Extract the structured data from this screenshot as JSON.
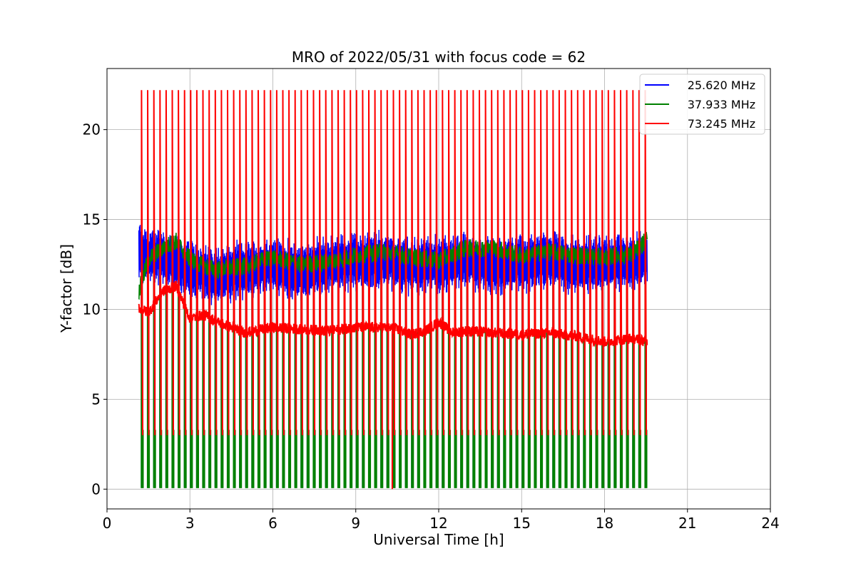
{
  "chart_data": {
    "type": "line",
    "title": "MRO of 2022/05/31 with focus code = 62",
    "xlabel": "Universal Time [h]",
    "ylabel": "Y-factor [dB]",
    "xlim": [
      0,
      24
    ],
    "ylim": [
      -1.1,
      23.4
    ],
    "xticks": [
      0,
      3,
      6,
      9,
      12,
      15,
      18,
      21,
      24
    ],
    "yticks": [
      0,
      5,
      10,
      15,
      20
    ],
    "grid": true,
    "legend_position": "top-right",
    "x_range_observed": [
      1.15,
      19.55
    ],
    "series": [
      {
        "name": "25.620 MHz",
        "color": "#0000ff",
        "baseline_x": [
          1.15,
          1.5,
          2.0,
          2.5,
          3.0,
          3.5,
          4.0,
          5.0,
          6.0,
          7.0,
          8.0,
          9.0,
          10.0,
          11.0,
          12.0,
          13.0,
          14.0,
          15.0,
          16.0,
          17.0,
          18.0,
          19.0,
          19.55
        ],
        "baseline_y": [
          13.3,
          12.9,
          13.0,
          12.6,
          12.2,
          12.0,
          11.9,
          12.2,
          12.4,
          12.1,
          12.5,
          12.6,
          12.8,
          12.4,
          12.5,
          12.7,
          12.4,
          12.6,
          12.8,
          12.4,
          12.6,
          12.6,
          12.8
        ],
        "fluctuation_amplitude_db": 1.8,
        "periodic_dip_min_db": 0.1
      },
      {
        "name": "37.933 MHz",
        "color": "#008000",
        "baseline_x": [
          1.15,
          1.5,
          2.0,
          2.5,
          3.0,
          3.5,
          4.0,
          5.0,
          6.0,
          7.0,
          8.0,
          9.0,
          10.0,
          11.0,
          12.0,
          13.0,
          14.0,
          15.0,
          16.0,
          17.0,
          18.0,
          19.0,
          19.55
        ],
        "baseline_y": [
          11.0,
          12.8,
          13.4,
          13.8,
          12.8,
          12.4,
          12.2,
          12.4,
          12.9,
          12.5,
          12.6,
          13.0,
          13.2,
          12.9,
          12.7,
          13.4,
          13.4,
          13.0,
          13.2,
          13.0,
          12.9,
          13.1,
          13.9
        ],
        "fluctuation_amplitude_db": 0.5,
        "periodic_dip_min_db": 0.1,
        "periodic_dip_shoulder_db": 3.3
      },
      {
        "name": "73.245 MHz",
        "color": "#ff0000",
        "baseline_x": [
          1.15,
          1.5,
          2.0,
          2.5,
          3.0,
          3.5,
          4.0,
          4.5,
          5.0,
          6.0,
          7.0,
          8.0,
          9.0,
          10.0,
          10.5,
          11.0,
          11.5,
          12.0,
          12.5,
          13.0,
          14.0,
          15.0,
          16.0,
          17.0,
          18.0,
          19.0,
          19.55
        ],
        "baseline_y": [
          10.1,
          9.8,
          11.0,
          11.3,
          9.5,
          9.7,
          9.3,
          9.0,
          8.7,
          9.0,
          8.9,
          8.8,
          9.0,
          9.0,
          8.9,
          8.6,
          8.8,
          9.3,
          8.7,
          8.8,
          8.7,
          8.6,
          8.7,
          8.5,
          8.2,
          8.4,
          8.2
        ],
        "fluctuation_amplitude_db": 0.3,
        "periodic_spike_max_db": 22.2,
        "periodic_dip_min_db": 3.0,
        "spike_period_h": 0.2222
      }
    ]
  }
}
